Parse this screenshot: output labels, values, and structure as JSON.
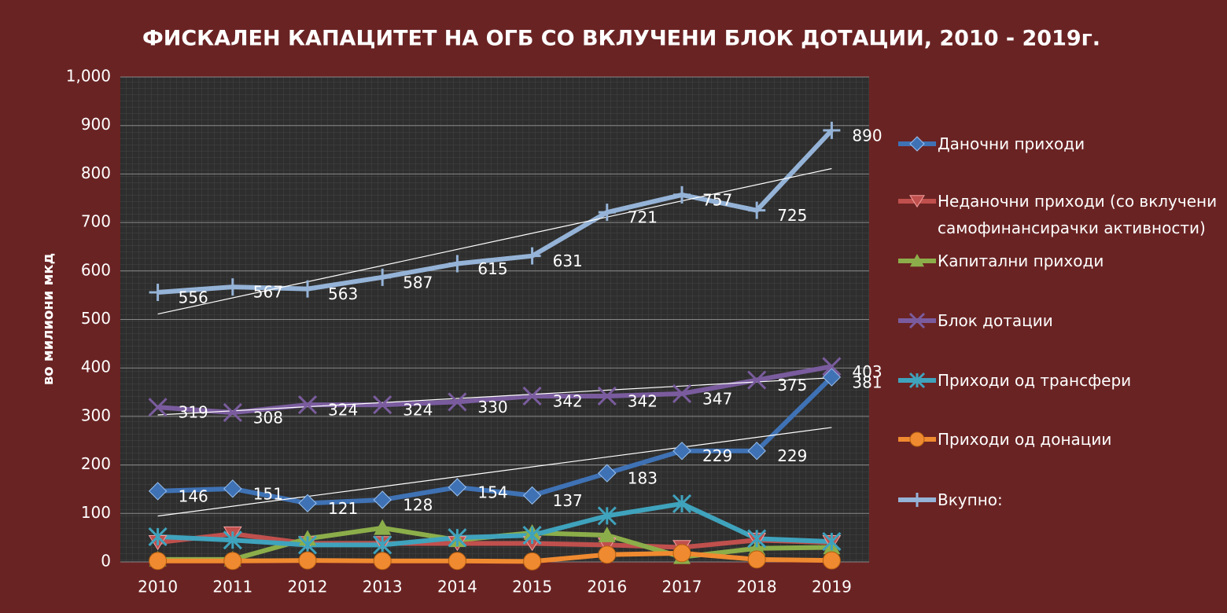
{
  "chart_data": {
    "type": "line",
    "title": "ФИСКАЛЕН КАПАЦИТЕТ НА ОГБ СО ВКЛУЧЕНИ БЛОК ДОТАЦИИ, 2010 - 2019г.",
    "ylabel": "во милиони мкд",
    "categories": [
      "2010",
      "2011",
      "2012",
      "2013",
      "2014",
      "2015",
      "2016",
      "2017",
      "2018",
      "2019"
    ],
    "ylim": [
      0,
      1000
    ],
    "yticks": [
      0,
      100,
      200,
      300,
      400,
      500,
      600,
      700,
      800,
      900,
      {
        "value": 1000,
        "label": "1,000"
      }
    ],
    "grid": true,
    "legend": "right",
    "series": [
      {
        "name": "Даночни приходи",
        "color": "#3f72b5",
        "marker": "diamond",
        "data_labels": true,
        "trendline": true,
        "values": [
          146,
          151,
          121,
          128,
          154,
          137,
          183,
          229,
          229,
          381
        ]
      },
      {
        "name": "Неданочни приходи (со вклучени самофинансирачки активности)",
        "color": "#c0504d",
        "marker": "triangle-down",
        "values": [
          40,
          58,
          38,
          38,
          38,
          38,
          35,
          30,
          45,
          40
        ]
      },
      {
        "name": "Капитални приходи",
        "color": "#8cae4a",
        "marker": "triangle",
        "values": [
          5,
          5,
          48,
          70,
          45,
          60,
          55,
          10,
          28,
          30
        ]
      },
      {
        "name": "Блок дотации",
        "color": "#7a5c9e",
        "marker": "x",
        "data_labels": true,
        "trendline": true,
        "values": [
          319,
          308,
          324,
          324,
          330,
          342,
          342,
          347,
          375,
          403
        ]
      },
      {
        "name": "Приходи од трансфери",
        "color": "#3fa3bd",
        "marker": "star",
        "values": [
          52,
          45,
          35,
          35,
          50,
          55,
          95,
          120,
          48,
          42
        ]
      },
      {
        "name": "Приходи од донации",
        "color": "#f08a30",
        "marker": "circle",
        "values": [
          2,
          2,
          3,
          2,
          2,
          1,
          15,
          18,
          5,
          3
        ]
      },
      {
        "name": "Вкупно:",
        "color": "#95b3d7",
        "marker": "plus",
        "data_labels": true,
        "trendline": true,
        "values": [
          556,
          567,
          563,
          587,
          615,
          631,
          721,
          757,
          725,
          890
        ]
      }
    ]
  }
}
